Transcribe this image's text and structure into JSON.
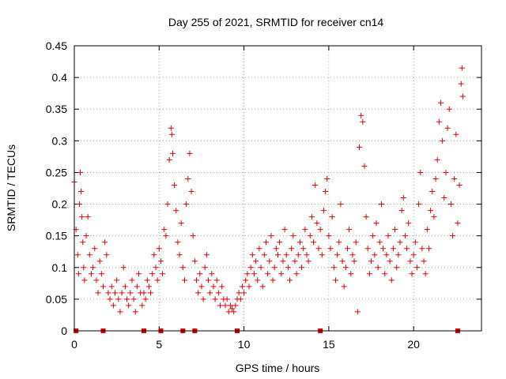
{
  "chart_data": {
    "type": "scatter",
    "title": "Day 255 of 2021, SRMTID for receiver cn14",
    "xlabel": "GPS time / hours",
    "ylabel": "SRMTID / TECUs",
    "xlim": [
      0,
      24
    ],
    "ylim": [
      0,
      0.45
    ],
    "x_ticks": [
      0,
      5,
      10,
      15,
      20
    ],
    "x_tick_labels": [
      "0",
      "5",
      "10",
      "15",
      "20"
    ],
    "y_ticks": [
      0,
      0.05,
      0.1,
      0.15,
      0.2,
      0.25,
      0.3,
      0.35,
      0.4,
      0.45
    ],
    "y_tick_labels": [
      "0",
      "0.05",
      "0.1",
      "0.15",
      "0.2",
      "0.25",
      "0.3",
      "0.35",
      "0.4",
      "0.45"
    ],
    "grid": true,
    "marker": "plus",
    "color": "#e00000",
    "series": [
      {
        "name": "SRMTID",
        "points": [
          [
            0.0,
            0.235
          ],
          [
            0.1,
            0.16
          ],
          [
            0.2,
            0.12
          ],
          [
            0.25,
            0.09
          ],
          [
            0.3,
            0.2
          ],
          [
            0.35,
            0.25
          ],
          [
            0.4,
            0.22
          ],
          [
            0.45,
            0.18
          ],
          [
            0.5,
            0.14
          ],
          [
            0.55,
            0.1
          ],
          [
            0.6,
            0.08
          ],
          [
            0.7,
            0.15
          ],
          [
            0.8,
            0.18
          ],
          [
            0.9,
            0.12
          ],
          [
            1.0,
            0.09
          ],
          [
            1.1,
            0.1
          ],
          [
            1.2,
            0.13
          ],
          [
            1.3,
            0.08
          ],
          [
            1.4,
            0.06
          ],
          [
            1.5,
            0.11
          ],
          [
            1.6,
            0.09
          ],
          [
            1.7,
            0.07
          ],
          [
            1.8,
            0.14
          ],
          [
            1.9,
            0.12
          ],
          [
            2.0,
            0.06
          ],
          [
            2.1,
            0.05
          ],
          [
            2.2,
            0.07
          ],
          [
            2.3,
            0.04
          ],
          [
            2.4,
            0.06
          ],
          [
            2.5,
            0.08
          ],
          [
            2.6,
            0.05
          ],
          [
            2.7,
            0.03
          ],
          [
            2.8,
            0.06
          ],
          [
            2.9,
            0.1
          ],
          [
            3.0,
            0.07
          ],
          [
            3.1,
            0.05
          ],
          [
            3.2,
            0.04
          ],
          [
            3.3,
            0.06
          ],
          [
            3.4,
            0.08
          ],
          [
            3.5,
            0.05
          ],
          [
            3.6,
            0.03
          ],
          [
            3.7,
            0.07
          ],
          [
            3.8,
            0.09
          ],
          [
            3.9,
            0.06
          ],
          [
            4.0,
            0.04
          ],
          [
            4.1,
            0.06
          ],
          [
            4.2,
            0.05
          ],
          [
            4.3,
            0.08
          ],
          [
            4.4,
            0.07
          ],
          [
            4.5,
            0.06
          ],
          [
            4.6,
            0.09
          ],
          [
            4.7,
            0.12
          ],
          [
            4.8,
            0.1
          ],
          [
            4.9,
            0.08
          ],
          [
            5.0,
            0.13
          ],
          [
            5.1,
            0.11
          ],
          [
            5.2,
            0.09
          ],
          [
            5.3,
            0.16
          ],
          [
            5.4,
            0.15
          ],
          [
            5.5,
            0.2
          ],
          [
            5.6,
            0.27
          ],
          [
            5.7,
            0.32
          ],
          [
            5.75,
            0.31
          ],
          [
            5.8,
            0.28
          ],
          [
            5.9,
            0.23
          ],
          [
            6.0,
            0.19
          ],
          [
            6.1,
            0.14
          ],
          [
            6.2,
            0.12
          ],
          [
            6.3,
            0.17
          ],
          [
            6.4,
            0.1
          ],
          [
            6.5,
            0.08
          ],
          [
            6.6,
            0.2
          ],
          [
            6.7,
            0.24
          ],
          [
            6.8,
            0.28
          ],
          [
            6.9,
            0.22
          ],
          [
            7.0,
            0.15
          ],
          [
            7.1,
            0.11
          ],
          [
            7.2,
            0.08
          ],
          [
            7.3,
            0.06
          ],
          [
            7.4,
            0.09
          ],
          [
            7.5,
            0.07
          ],
          [
            7.6,
            0.05
          ],
          [
            7.7,
            0.1
          ],
          [
            7.8,
            0.12
          ],
          [
            7.9,
            0.08
          ],
          [
            8.0,
            0.06
          ],
          [
            8.1,
            0.09
          ],
          [
            8.2,
            0.07
          ],
          [
            8.3,
            0.05
          ],
          [
            8.4,
            0.08
          ],
          [
            8.5,
            0.06
          ],
          [
            8.6,
            0.04
          ],
          [
            8.7,
            0.07
          ],
          [
            8.8,
            0.05
          ],
          [
            8.9,
            0.04
          ],
          [
            9.0,
            0.05
          ],
          [
            9.1,
            0.03
          ],
          [
            9.2,
            0.04
          ],
          [
            9.3,
            0.035
          ],
          [
            9.4,
            0.03
          ],
          [
            9.5,
            0.04
          ],
          [
            9.6,
            0.05
          ],
          [
            9.7,
            0.06
          ],
          [
            9.8,
            0.05
          ],
          [
            9.9,
            0.07
          ],
          [
            10.0,
            0.06
          ],
          [
            10.1,
            0.08
          ],
          [
            10.2,
            0.09
          ],
          [
            10.3,
            0.07
          ],
          [
            10.4,
            0.1
          ],
          [
            10.5,
            0.12
          ],
          [
            10.6,
            0.09
          ],
          [
            10.7,
            0.11
          ],
          [
            10.8,
            0.08
          ],
          [
            10.9,
            0.13
          ],
          [
            11.0,
            0.1
          ],
          [
            11.1,
            0.07
          ],
          [
            11.2,
            0.12
          ],
          [
            11.3,
            0.14
          ],
          [
            11.4,
            0.09
          ],
          [
            11.5,
            0.11
          ],
          [
            11.6,
            0.15
          ],
          [
            11.7,
            0.08
          ],
          [
            11.8,
            0.1
          ],
          [
            11.9,
            0.13
          ],
          [
            12.0,
            0.12
          ],
          [
            12.1,
            0.14
          ],
          [
            12.2,
            0.09
          ],
          [
            12.3,
            0.11
          ],
          [
            12.4,
            0.16
          ],
          [
            12.5,
            0.12
          ],
          [
            12.6,
            0.1
          ],
          [
            12.7,
            0.08
          ],
          [
            12.8,
            0.13
          ],
          [
            12.9,
            0.15
          ],
          [
            13.0,
            0.11
          ],
          [
            13.1,
            0.09
          ],
          [
            13.2,
            0.12
          ],
          [
            13.3,
            0.14
          ],
          [
            13.4,
            0.1
          ],
          [
            13.5,
            0.13
          ],
          [
            13.6,
            0.16
          ],
          [
            13.7,
            0.12
          ],
          [
            13.8,
            0.11
          ],
          [
            13.9,
            0.15
          ],
          [
            14.0,
            0.18
          ],
          [
            14.1,
            0.14
          ],
          [
            14.2,
            0.23
          ],
          [
            14.3,
            0.17
          ],
          [
            14.4,
            0.13
          ],
          [
            14.5,
            0.16
          ],
          [
            14.6,
            0.12
          ],
          [
            14.7,
            0.19
          ],
          [
            14.8,
            0.22
          ],
          [
            14.9,
            0.24
          ],
          [
            15.0,
            0.15
          ],
          [
            15.1,
            0.13
          ],
          [
            15.2,
            0.18
          ],
          [
            15.3,
            0.1
          ],
          [
            15.4,
            0.08
          ],
          [
            15.5,
            0.12
          ],
          [
            15.6,
            0.14
          ],
          [
            15.7,
            0.2
          ],
          [
            15.8,
            0.11
          ],
          [
            15.9,
            0.07
          ],
          [
            16.0,
            0.1
          ],
          [
            16.1,
            0.13
          ],
          [
            16.2,
            0.16
          ],
          [
            16.3,
            0.09
          ],
          [
            16.4,
            0.12
          ],
          [
            16.5,
            0.11
          ],
          [
            16.6,
            0.14
          ],
          [
            16.7,
            0.03
          ],
          [
            16.8,
            0.29
          ],
          [
            16.9,
            0.34
          ],
          [
            17.0,
            0.33
          ],
          [
            17.1,
            0.26
          ],
          [
            17.2,
            0.18
          ],
          [
            17.3,
            0.13
          ],
          [
            17.4,
            0.09
          ],
          [
            17.5,
            0.11
          ],
          [
            17.6,
            0.15
          ],
          [
            17.7,
            0.12
          ],
          [
            17.8,
            0.17
          ],
          [
            17.9,
            0.1
          ],
          [
            18.0,
            0.14
          ],
          [
            18.1,
            0.2
          ],
          [
            18.2,
            0.13
          ],
          [
            18.3,
            0.09
          ],
          [
            18.4,
            0.12
          ],
          [
            18.5,
            0.15
          ],
          [
            18.6,
            0.11
          ],
          [
            18.7,
            0.08
          ],
          [
            18.8,
            0.13
          ],
          [
            18.9,
            0.16
          ],
          [
            19.0,
            0.1
          ],
          [
            19.1,
            0.12
          ],
          [
            19.2,
            0.14
          ],
          [
            19.3,
            0.19
          ],
          [
            19.4,
            0.21
          ],
          [
            19.5,
            0.15
          ],
          [
            19.6,
            0.13
          ],
          [
            19.7,
            0.17
          ],
          [
            19.8,
            0.11
          ],
          [
            19.9,
            0.09
          ],
          [
            20.0,
            0.12
          ],
          [
            20.1,
            0.14
          ],
          [
            20.2,
            0.1
          ],
          [
            20.3,
            0.2
          ],
          [
            20.4,
            0.25
          ],
          [
            20.5,
            0.13
          ],
          [
            20.6,
            0.11
          ],
          [
            20.7,
            0.09
          ],
          [
            20.8,
            0.16
          ],
          [
            20.9,
            0.13
          ],
          [
            21.0,
            0.19
          ],
          [
            21.1,
            0.22
          ],
          [
            21.2,
            0.18
          ],
          [
            21.3,
            0.24
          ],
          [
            21.4,
            0.27
          ],
          [
            21.5,
            0.33
          ],
          [
            21.6,
            0.36
          ],
          [
            21.7,
            0.3
          ],
          [
            21.8,
            0.21
          ],
          [
            21.9,
            0.25
          ],
          [
            22.0,
            0.32
          ],
          [
            22.1,
            0.35
          ],
          [
            22.2,
            0.2
          ],
          [
            22.3,
            0.15
          ],
          [
            22.4,
            0.24
          ],
          [
            22.5,
            0.31
          ],
          [
            22.6,
            0.17
          ],
          [
            22.7,
            0.23
          ],
          [
            22.8,
            0.39
          ],
          [
            22.85,
            0.415
          ],
          [
            22.9,
            0.37
          ]
        ]
      }
    ],
    "gap_markers_x": [
      0.1,
      1.7,
      4.1,
      5.1,
      6.4,
      7.1,
      9.6,
      14.5,
      22.6
    ]
  }
}
